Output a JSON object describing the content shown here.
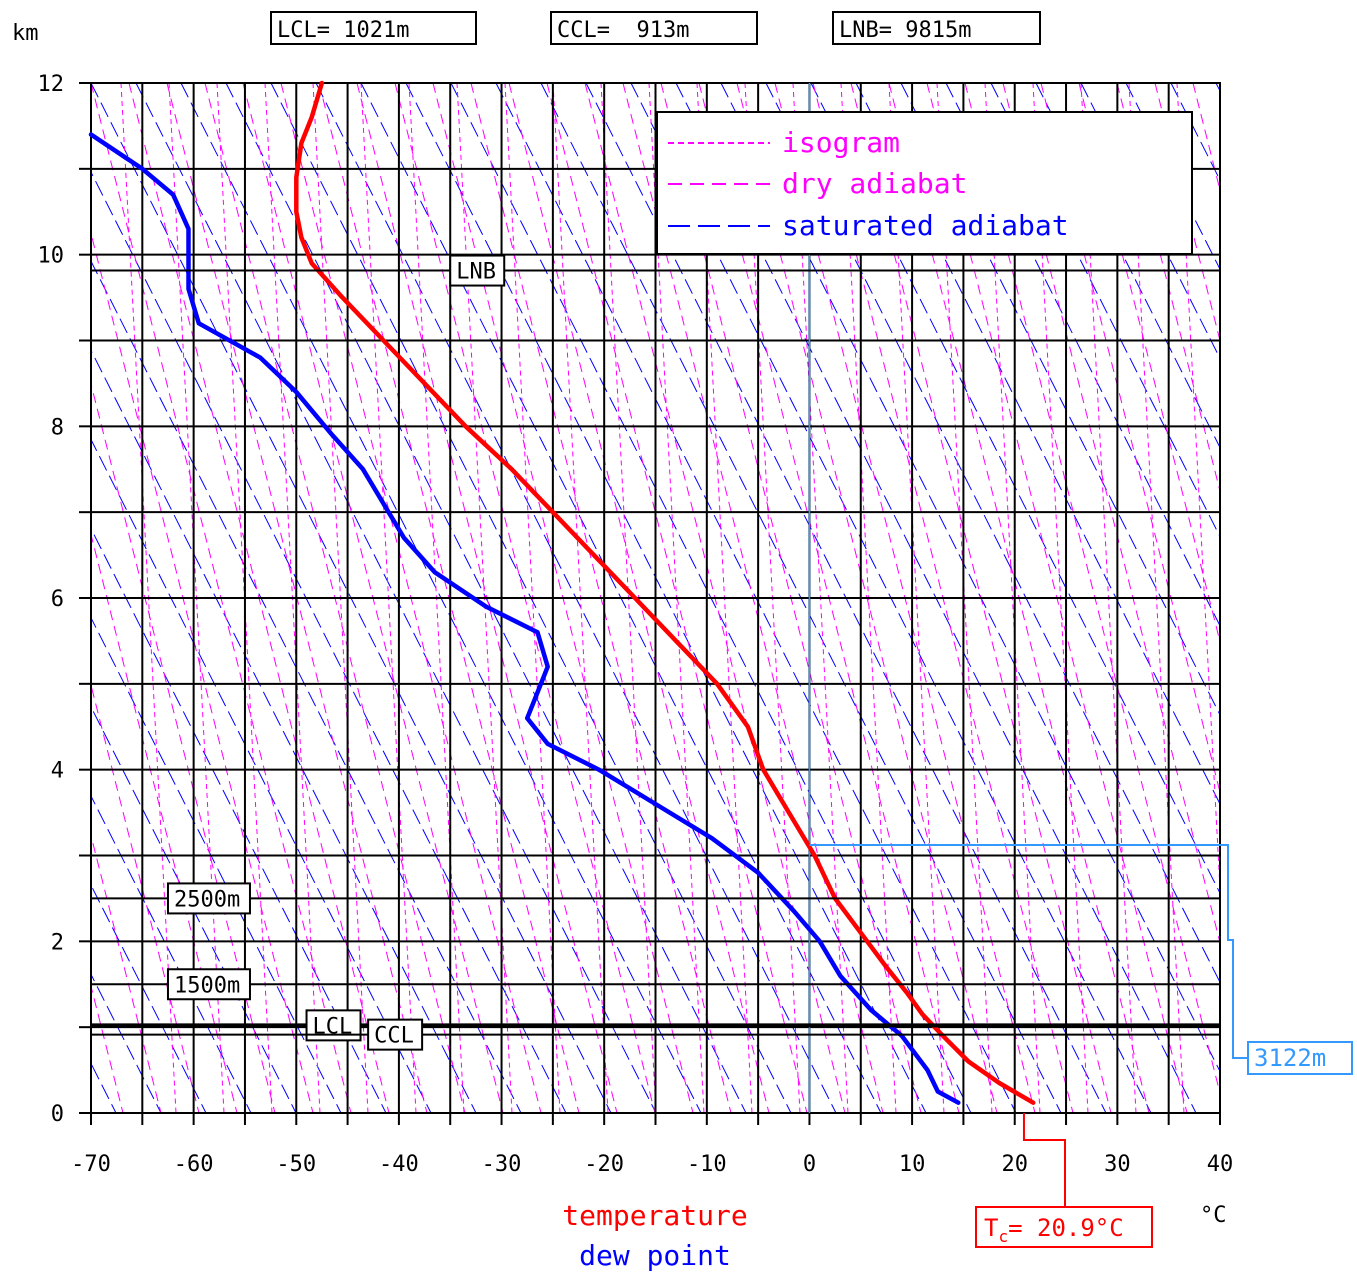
{
  "chart_data": {
    "type": "line",
    "title": "",
    "ylabel": "km",
    "xlabel": "°C",
    "xlim": [
      -70,
      40
    ],
    "ylim": [
      0,
      12
    ],
    "x_ticks": [
      "-70",
      "-60",
      "-50",
      "-40",
      "-30",
      "-20",
      "-10",
      "0",
      "10",
      "20",
      "30",
      "40"
    ],
    "y_ticks": [
      "0",
      "2",
      "4",
      "6",
      "8",
      "10",
      "12"
    ],
    "header_boxes": [
      "LCL= 1021m",
      "CCL=  913m",
      "LNB= 9815m"
    ],
    "legend": {
      "placement": "top-right",
      "entries": [
        {
          "label": "isogram",
          "color": "#ff00ff",
          "style": "short-dash"
        },
        {
          "label": "dry adiabat",
          "color": "#ff00ff",
          "style": "dash"
        },
        {
          "label": "saturated adiabat",
          "color": "#0000ff",
          "style": "long-dash"
        }
      ]
    },
    "series": [
      {
        "name": "temperature",
        "color": "#ff0000",
        "points": [
          [
            21.8,
            0.12
          ],
          [
            18.5,
            0.35
          ],
          [
            15.5,
            0.6
          ],
          [
            13.0,
            0.9
          ],
          [
            11.0,
            1.15
          ],
          [
            9.5,
            1.4
          ],
          [
            7.5,
            1.7
          ],
          [
            5.0,
            2.1
          ],
          [
            2.5,
            2.5
          ],
          [
            0.5,
            3.0
          ],
          [
            -2.0,
            3.5
          ],
          [
            -4.5,
            4.0
          ],
          [
            -6.0,
            4.5
          ],
          [
            -9.0,
            5.0
          ],
          [
            -13.0,
            5.5
          ],
          [
            -17.0,
            6.0
          ],
          [
            -21.0,
            6.5
          ],
          [
            -25.0,
            7.0
          ],
          [
            -29.0,
            7.5
          ],
          [
            -33.5,
            8.0
          ],
          [
            -37.5,
            8.5
          ],
          [
            -41.5,
            9.0
          ],
          [
            -45.5,
            9.5
          ],
          [
            -48.5,
            9.9
          ],
          [
            -49.5,
            10.2
          ],
          [
            -50.0,
            10.5
          ],
          [
            -50.0,
            10.9
          ],
          [
            -49.5,
            11.3
          ],
          [
            -48.5,
            11.6
          ],
          [
            -47.5,
            12.0
          ]
        ]
      },
      {
        "name": "dew point",
        "color": "#0000ff",
        "points": [
          [
            14.5,
            0.12
          ],
          [
            12.5,
            0.25
          ],
          [
            11.5,
            0.5
          ],
          [
            9.0,
            0.9
          ],
          [
            6.0,
            1.2
          ],
          [
            3.0,
            1.6
          ],
          [
            1.0,
            2.0
          ],
          [
            -1.5,
            2.35
          ],
          [
            -5.0,
            2.8
          ],
          [
            -9.5,
            3.2
          ],
          [
            -15.0,
            3.6
          ],
          [
            -20.5,
            4.0
          ],
          [
            -25.5,
            4.3
          ],
          [
            -27.5,
            4.6
          ],
          [
            -26.5,
            4.9
          ],
          [
            -25.5,
            5.2
          ],
          [
            -26.5,
            5.6
          ],
          [
            -31.5,
            5.9
          ],
          [
            -36.5,
            6.3
          ],
          [
            -39.5,
            6.7
          ],
          [
            -41.0,
            7.0
          ],
          [
            -43.5,
            7.5
          ],
          [
            -46.5,
            7.9
          ],
          [
            -50.0,
            8.4
          ],
          [
            -53.5,
            8.8
          ],
          [
            -59.5,
            9.2
          ],
          [
            -60.5,
            9.6
          ],
          [
            -60.5,
            10.0
          ],
          [
            -60.5,
            10.3
          ],
          [
            -62.0,
            10.7
          ],
          [
            -65.0,
            11.0
          ],
          [
            -70.0,
            11.4
          ]
        ]
      }
    ],
    "markers": [
      {
        "label": "LNB",
        "km": 9.815,
        "label_x": -35
      },
      {
        "label": "LCL",
        "km": 1.021,
        "label_x": -49
      },
      {
        "label": "CCL",
        "km": 0.913,
        "label_x": -43
      },
      {
        "label": "2500m",
        "km": 2.5,
        "label_x": -62.5
      },
      {
        "label": "1500m",
        "km": 1.5,
        "label_x": -62.5
      }
    ],
    "convective": {
      "label": "3122m",
      "km": 3.122,
      "color": "#3399ff"
    },
    "tc_label": "T",
    "tc_sub": "c",
    "tc_value": "= 20.9°C",
    "tc_celsius": 20.9,
    "footer": {
      "temperature": "temperature",
      "dew_point": "dew point"
    }
  }
}
